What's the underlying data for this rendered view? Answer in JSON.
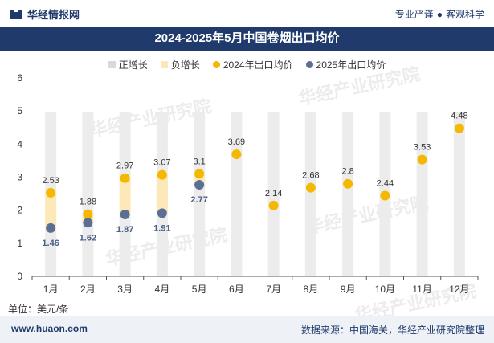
{
  "header": {
    "logo_text": "华经情报网",
    "slogan_left": "专业严谨",
    "slogan_sep": "●",
    "slogan_right": "客观科学"
  },
  "title": "2024-2025年5月中国卷烟出口均价",
  "legend": [
    {
      "label": "正增长",
      "color": "#d9d9d9",
      "shape": "square"
    },
    {
      "label": "负增长",
      "color": "#fde9b8",
      "shape": "square"
    },
    {
      "label": "2024年出口均价",
      "color": "#f5b800",
      "shape": "dot"
    },
    {
      "label": "2025年出口均价",
      "color": "#5b6f95",
      "shape": "dot"
    }
  ],
  "unit": "单位：美元/条",
  "footer": {
    "site": "www.huaon.com",
    "source": "数据来源：中国海关，华经产业研究院整理"
  },
  "watermark": "华经产业研究院",
  "chart_data": {
    "type": "scatter",
    "categories": [
      "1月",
      "2月",
      "3月",
      "4月",
      "5月",
      "6月",
      "7月",
      "8月",
      "9月",
      "10月",
      "11月",
      "12月"
    ],
    "ylim": [
      0,
      6
    ],
    "yticks": [
      0,
      1,
      2,
      3,
      4,
      5,
      6
    ],
    "grid": false,
    "legend_position": "top",
    "series": [
      {
        "name": "2024年出口均价",
        "color": "#f5b800",
        "values": [
          2.53,
          1.88,
          2.97,
          3.07,
          3.1,
          3.69,
          2.14,
          2.68,
          2.8,
          2.44,
          3.53,
          4.48
        ]
      },
      {
        "name": "2025年出口均价",
        "color": "#5b6f95",
        "values": [
          1.46,
          1.62,
          1.87,
          1.91,
          2.77,
          null,
          null,
          null,
          null,
          null,
          null,
          null
        ]
      }
    ],
    "change_bands": {
      "positive_color": "#e3e3e3",
      "negative_color": "#fde9b8"
    }
  }
}
